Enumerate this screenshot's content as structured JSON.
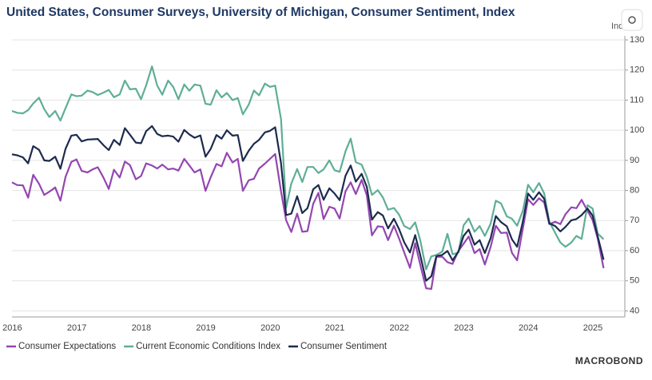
{
  "chart_data": {
    "type": "line",
    "title": "United States, Consumer Surveys, University of Michigan, Consumer Sentiment, Index",
    "y_label": "Index",
    "source": "MACROBOND",
    "x": [
      2016,
      2016.08,
      2016.17,
      2016.25,
      2016.33,
      2016.42,
      2016.5,
      2016.58,
      2016.67,
      2016.75,
      2016.83,
      2016.92,
      2017,
      2017.08,
      2017.17,
      2017.25,
      2017.33,
      2017.42,
      2017.5,
      2017.58,
      2017.67,
      2017.75,
      2017.83,
      2017.92,
      2018,
      2018.08,
      2018.17,
      2018.25,
      2018.33,
      2018.42,
      2018.5,
      2018.58,
      2018.67,
      2018.75,
      2018.83,
      2018.92,
      2019,
      2019.08,
      2019.17,
      2019.25,
      2019.33,
      2019.42,
      2019.5,
      2019.58,
      2019.67,
      2019.75,
      2019.83,
      2019.92,
      2020,
      2020.08,
      2020.17,
      2020.25,
      2020.33,
      2020.42,
      2020.5,
      2020.58,
      2020.67,
      2020.75,
      2020.83,
      2020.92,
      2021,
      2021.08,
      2021.17,
      2021.25,
      2021.33,
      2021.42,
      2021.5,
      2021.58,
      2021.67,
      2021.75,
      2021.83,
      2021.92,
      2022,
      2022.08,
      2022.17,
      2022.25,
      2022.33,
      2022.42,
      2022.5,
      2022.58,
      2022.67,
      2022.75,
      2022.83,
      2022.92,
      2023,
      2023.08,
      2023.17,
      2023.25,
      2023.33,
      2023.42,
      2023.5,
      2023.58,
      2023.67,
      2023.75,
      2023.83,
      2023.92,
      2024,
      2024.08,
      2024.17,
      2024.25,
      2024.33,
      2024.42,
      2024.5,
      2024.58,
      2024.67,
      2024.75,
      2024.83,
      2024.92,
      2025,
      2025.08,
      2025.17
    ],
    "series": [
      {
        "name": "Consumer Expectations",
        "color": "#9446b0",
        "values": [
          82.7,
          81.8,
          81.7,
          77.6,
          85.2,
          82.2,
          78.5,
          79.6,
          81.0,
          76.6,
          84.5,
          89.5,
          90.3,
          86.5,
          86.0,
          87.0,
          87.7,
          84.2,
          80.5,
          86.9,
          84.3,
          89.6,
          88.4,
          83.7,
          84.8,
          89.0,
          88.3,
          87.3,
          88.6,
          87.0,
          87.3,
          86.6,
          90.5,
          88.3,
          86.0,
          87.0,
          79.9,
          84.4,
          88.8,
          88.0,
          92.5,
          89.3,
          90.5,
          79.9,
          83.4,
          83.9,
          87.3,
          88.9,
          90.5,
          92.1,
          79.7,
          70.1,
          66.2,
          72.3,
          66.3,
          66.5,
          75.6,
          79.2,
          70.5,
          74.6,
          74.0,
          70.7,
          79.7,
          82.7,
          78.8,
          83.5,
          78.4,
          65.1,
          68.1,
          67.9,
          63.5,
          68.3,
          64.1,
          59.4,
          54.3,
          62.5,
          55.2,
          47.5,
          47.3,
          58.0,
          58.0,
          56.2,
          55.6,
          59.9,
          62.3,
          64.7,
          59.2,
          60.5,
          55.4,
          61.3,
          68.3,
          65.9,
          66.0,
          59.3,
          56.8,
          67.4,
          77.1,
          75.2,
          77.4,
          76.0,
          68.8,
          69.6,
          68.8,
          72.1,
          74.4,
          74.1,
          76.9,
          73.3,
          70.2,
          64.0,
          54.2
        ]
      },
      {
        "name": "Current Economic Conditions Index",
        "color": "#5fae97",
        "values": [
          106.4,
          105.8,
          105.6,
          106.7,
          108.9,
          110.8,
          107.0,
          104.4,
          106.4,
          103.2,
          107.3,
          111.9,
          111.3,
          111.5,
          113.2,
          112.7,
          111.7,
          112.5,
          113.4,
          111.0,
          111.9,
          116.5,
          113.6,
          113.8,
          110.3,
          114.9,
          121.2,
          114.9,
          111.8,
          116.5,
          114.4,
          110.3,
          115.2,
          113.1,
          115.2,
          114.8,
          108.8,
          108.5,
          113.3,
          110.9,
          112.4,
          110.0,
          110.7,
          105.3,
          108.5,
          113.2,
          111.6,
          115.5,
          114.4,
          114.8,
          103.7,
          74.3,
          82.3,
          87.1,
          82.8,
          87.8,
          87.8,
          85.8,
          87.0,
          90.0,
          86.7,
          86.2,
          93.0,
          97.2,
          89.4,
          88.6,
          84.5,
          78.5,
          80.1,
          77.7,
          73.6,
          74.2,
          72.0,
          68.2,
          67.2,
          69.4,
          63.3,
          53.8,
          58.1,
          58.6,
          59.7,
          65.6,
          58.8,
          59.4,
          68.4,
          70.7,
          66.3,
          68.2,
          64.9,
          69.0,
          76.6,
          75.7,
          71.4,
          70.6,
          68.3,
          73.3,
          81.9,
          79.4,
          82.5,
          79.0,
          69.6,
          65.9,
          62.7,
          61.3,
          62.7,
          64.9,
          63.9,
          75.1,
          74.0,
          65.7,
          63.8
        ]
      },
      {
        "name": "Consumer Sentiment",
        "color": "#1c2b4e",
        "values": [
          92.0,
          91.7,
          91.0,
          89.0,
          94.7,
          93.5,
          90.0,
          89.8,
          91.2,
          87.2,
          93.8,
          98.2,
          98.5,
          96.3,
          96.9,
          97.0,
          97.1,
          95.0,
          93.4,
          96.8,
          95.1,
          100.7,
          98.5,
          95.9,
          95.7,
          99.7,
          101.4,
          98.8,
          98.0,
          98.2,
          97.9,
          96.2,
          100.1,
          98.6,
          97.5,
          98.3,
          91.2,
          93.8,
          98.4,
          97.2,
          100.0,
          98.2,
          98.4,
          89.8,
          93.2,
          95.5,
          96.8,
          99.3,
          99.8,
          101.0,
          89.1,
          71.8,
          72.3,
          78.1,
          72.5,
          74.1,
          80.4,
          81.8,
          76.9,
          80.7,
          79.0,
          76.8,
          84.9,
          88.3,
          82.9,
          85.5,
          81.2,
          70.3,
          72.8,
          71.7,
          67.4,
          70.6,
          67.2,
          62.8,
          59.4,
          65.2,
          58.4,
          50.0,
          51.5,
          58.2,
          58.6,
          59.9,
          56.8,
          59.7,
          64.9,
          67.0,
          62.0,
          63.5,
          59.2,
          64.2,
          71.5,
          69.5,
          68.1,
          63.8,
          61.3,
          69.7,
          79.0,
          76.9,
          79.4,
          77.2,
          69.1,
          68.2,
          66.4,
          67.9,
          70.1,
          70.5,
          71.8,
          74.0,
          71.7,
          64.7,
          57.0
        ]
      }
    ],
    "xlim": [
      2016,
      2025.5
    ],
    "xticks": [
      {
        "value": 2016.5,
        "label": "2016"
      },
      {
        "value": 2017.5,
        "label": "2017"
      },
      {
        "value": 2018.5,
        "label": "2018"
      },
      {
        "value": 2019.5,
        "label": "2019"
      },
      {
        "value": 2020.5,
        "label": "2020"
      },
      {
        "value": 2021.5,
        "label": "2021"
      },
      {
        "value": 2022.5,
        "label": "2022"
      },
      {
        "value": 2023.5,
        "label": "2023"
      },
      {
        "value": 2024.5,
        "label": "2024"
      },
      {
        "value": 2025.5,
        "label": "2025"
      }
    ],
    "ylim": [
      38,
      130
    ],
    "yticks": [
      40,
      50,
      60,
      70,
      80,
      90,
      100,
      110,
      120,
      130
    ],
    "grid": true,
    "legend": "bottom-left"
  }
}
